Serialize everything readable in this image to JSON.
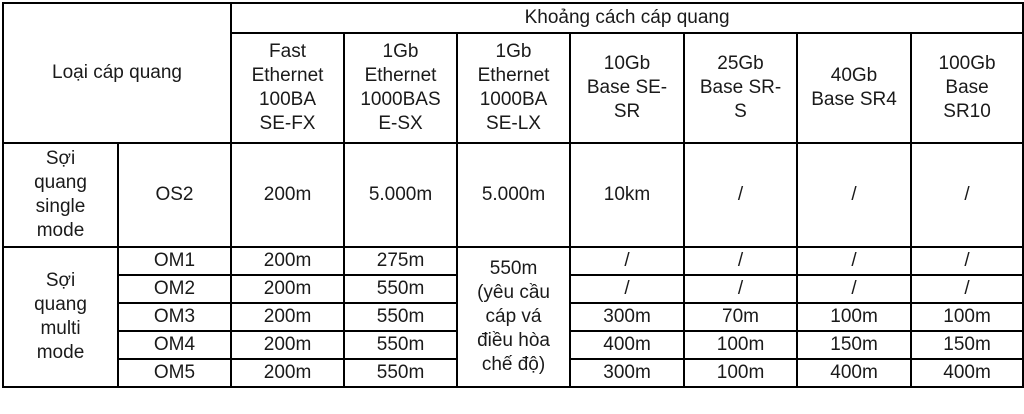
{
  "header": {
    "type_label": "Loại cáp quang",
    "distance_label": "Khoảng cách cáp quang",
    "columns": [
      "Fast\nEthernet\n100BA\nSE-FX",
      "1Gb\nEthernet\n1000BAS\nE-SX",
      "1Gb\nEthernet\n1000BA\nSE-LX",
      "10Gb\nBase SE-\nSR",
      "25Gb\nBase SR-\nS",
      "40Gb\nBase SR4",
      "100Gb\nBase\nSR10"
    ]
  },
  "single_mode": {
    "group": "Sợi\nquang\nsingle\nmode",
    "row": {
      "type": "OS2",
      "values": [
        "200m",
        "5.000m",
        "5.000m",
        "10km",
        "/",
        "/",
        "/"
      ]
    }
  },
  "multi_mode": {
    "group": "Sợi\nquang\nmulti\nmode",
    "lx_merged": "550m\n(yêu cầu\ncáp vá\nđiều hòa\nchế độ)",
    "rows": [
      {
        "type": "OM1",
        "fx": "200m",
        "sx": "275m",
        "rest": [
          "/",
          "/",
          "/",
          "/"
        ]
      },
      {
        "type": "OM2",
        "fx": "200m",
        "sx": "550m",
        "rest": [
          "/",
          "/",
          "/",
          "/"
        ]
      },
      {
        "type": "OM3",
        "fx": "200m",
        "sx": "550m",
        "rest": [
          "300m",
          "70m",
          "100m",
          "100m"
        ]
      },
      {
        "type": "OM4",
        "fx": "200m",
        "sx": "550m",
        "rest": [
          "400m",
          "100m",
          "150m",
          "150m"
        ]
      },
      {
        "type": "OM5",
        "fx": "200m",
        "sx": "550m",
        "rest": [
          "300m",
          "100m",
          "400m",
          "400m"
        ]
      }
    ]
  }
}
